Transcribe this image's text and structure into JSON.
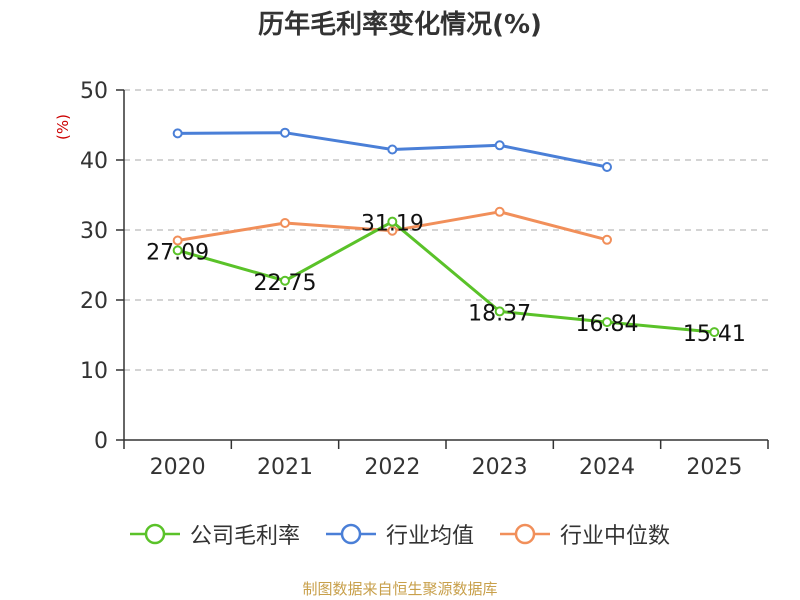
{
  "title": "历年毛利率变化情况(%)",
  "source": "制图数据来自恒生聚源数据库",
  "chart_data": {
    "type": "line",
    "categories": [
      "2020",
      "2021",
      "2022",
      "2023",
      "2024",
      "2025"
    ],
    "ylabel": "(%)",
    "ylim": [
      0,
      50
    ],
    "yticks": [
      0,
      10,
      20,
      30,
      40,
      50
    ],
    "grid": true,
    "legend_position": "bottom",
    "series": [
      {
        "name": "公司毛利率",
        "color": "#5ac229",
        "values": [
          27.09,
          22.75,
          31.19,
          18.37,
          16.84,
          15.41
        ],
        "labels": [
          "27.09",
          "22.75",
          "31.19",
          "18.37",
          "16.84",
          "15.41"
        ]
      },
      {
        "name": "行业均值",
        "color": "#4a7fd7",
        "values": [
          43.8,
          43.9,
          41.5,
          42.1,
          39.0,
          null
        ]
      },
      {
        "name": "行业中位数",
        "color": "#f18f5a",
        "values": [
          28.5,
          31.0,
          29.9,
          32.6,
          28.6,
          null
        ]
      }
    ]
  }
}
